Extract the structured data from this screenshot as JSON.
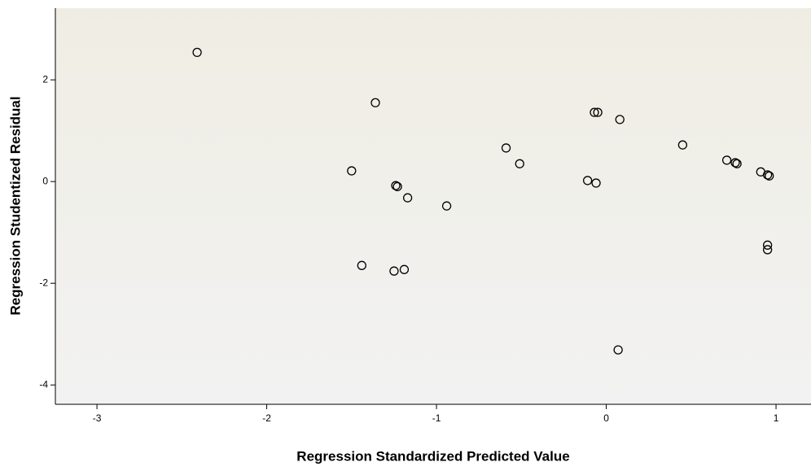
{
  "chart_data": {
    "type": "scatter",
    "x_label": "Regression Standardized Predicted Value",
    "y_label": "Regression Studentized Residual",
    "xlim": [
      -3.245,
      1.206
    ],
    "ylim": [
      -4.38,
      3.41
    ],
    "xticks": [
      -3,
      -2,
      -1,
      0,
      1
    ],
    "yticks": [
      2,
      0,
      -2,
      -4
    ],
    "series": [
      {
        "color": "#000000",
        "x": [
          -2.41,
          -1.36,
          -1.5,
          -1.24,
          -1.23,
          -1.17,
          -0.94,
          -1.44,
          -1.25,
          -1.19,
          -0.59,
          -0.51,
          -0.07,
          -0.05,
          0.08,
          -0.11,
          -0.06,
          0.45,
          0.71,
          0.76,
          0.77,
          0.91,
          0.95,
          0.96,
          0.95,
          0.95,
          0.07
        ],
        "values": [
          2.54,
          1.55,
          0.21,
          -0.08,
          -0.1,
          -0.32,
          -0.48,
          -1.65,
          -1.76,
          -1.73,
          0.66,
          0.35,
          1.36,
          1.36,
          1.22,
          0.02,
          -0.03,
          0.72,
          0.42,
          0.37,
          0.35,
          0.19,
          0.13,
          0.11,
          -1.25,
          -1.34,
          -3.31
        ]
      }
    ]
  }
}
